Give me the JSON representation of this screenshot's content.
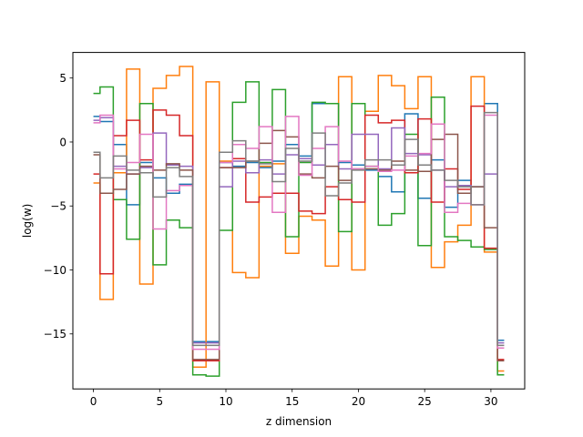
{
  "chart_data": {
    "type": "line",
    "step": "mid",
    "title": "",
    "xlabel": "z dimension",
    "ylabel": "log(w)",
    "xlim": [
      -1.55,
      32.55
    ],
    "ylim": [
      -19.3,
      7.0
    ],
    "xticks": [
      0,
      5,
      10,
      15,
      20,
      25,
      30
    ],
    "yticks": [
      -15,
      -10,
      -5,
      0,
      5
    ],
    "xtick_labels": [
      "0",
      "5",
      "10",
      "15",
      "20",
      "25",
      "30"
    ],
    "ytick_labels": [
      "−15",
      "−10",
      "−5",
      "0",
      "5"
    ],
    "grid": false,
    "legend": false,
    "x": [
      0,
      1,
      2,
      3,
      4,
      5,
      6,
      7,
      8,
      9,
      10,
      11,
      12,
      13,
      14,
      15,
      16,
      17,
      18,
      19,
      20,
      21,
      22,
      23,
      24,
      25,
      26,
      27,
      28,
      29,
      30,
      31
    ],
    "series": [
      {
        "color": "#1f77b4",
        "values": [
          2.0,
          1.6,
          -0.2,
          -4.9,
          -1.6,
          -2.8,
          -4.0,
          -3.3,
          -15.6,
          -15.6,
          -1.6,
          -1.9,
          -1.6,
          -2.0,
          -1.5,
          -0.2,
          -1.1,
          3.0,
          3.0,
          -1.6,
          -1.8,
          -2.2,
          -2.7,
          -3.9,
          2.2,
          -4.4,
          -1.4,
          -5.1,
          -3.0,
          -3.5,
          3.0,
          -15.5
        ]
      },
      {
        "color": "#ff7f0e",
        "values": [
          -3.2,
          -12.3,
          -2.4,
          5.7,
          -11.1,
          4.2,
          5.2,
          5.9,
          -17.6,
          4.7,
          -1.5,
          -10.2,
          -10.6,
          -1.9,
          -1.7,
          -8.7,
          -5.8,
          -6.1,
          -9.7,
          5.1,
          -10.0,
          2.4,
          5.2,
          4.4,
          2.6,
          5.1,
          -9.8,
          -7.8,
          -6.5,
          5.1,
          -8.6,
          -17.9
        ]
      },
      {
        "color": "#2ca02c",
        "values": [
          3.8,
          4.3,
          -4.5,
          -7.6,
          3.0,
          -9.6,
          -6.1,
          -6.7,
          -18.2,
          -18.3,
          -6.9,
          3.1,
          4.7,
          -1.6,
          4.1,
          -7.4,
          -1.6,
          3.1,
          3.0,
          -7.0,
          3.0,
          -1.9,
          -6.5,
          -5.6,
          0.6,
          -8.1,
          3.5,
          -7.4,
          -7.7,
          -8.2,
          -8.4,
          -18.2
        ]
      },
      {
        "color": "#d62728",
        "values": [
          -2.5,
          -10.3,
          0.5,
          1.7,
          -1.4,
          2.5,
          2.1,
          0.5,
          -17.1,
          -17.1,
          -2.0,
          -1.3,
          -4.7,
          -4.3,
          -4.0,
          -4.0,
          -5.4,
          -5.6,
          -3.5,
          -4.5,
          -4.7,
          2.1,
          1.5,
          1.7,
          -2.4,
          1.8,
          -4.7,
          -2.1,
          -3.7,
          2.8,
          -8.3,
          -17.0
        ]
      },
      {
        "color": "#9467bd",
        "values": [
          1.7,
          1.9,
          -1.9,
          -2.5,
          -2.0,
          0.7,
          -1.8,
          -1.9,
          -15.7,
          -15.7,
          -3.5,
          -1.5,
          -2.4,
          -1.4,
          -2.5,
          -1.0,
          -1.3,
          -1.8,
          -0.2,
          -2.1,
          0.6,
          0.6,
          -2.1,
          1.1,
          -0.9,
          -1.0,
          -2.2,
          -3.5,
          -3.4,
          -4.9,
          -2.5,
          -15.7
        ]
      },
      {
        "color": "#8c564b",
        "values": [
          -1.0,
          -4.0,
          -3.7,
          -2.5,
          -1.9,
          -2.2,
          -1.7,
          -2.2,
          -17.0,
          -17.0,
          -2.0,
          -2.0,
          -1.5,
          -0.1,
          0.9,
          0.4,
          -2.5,
          -2.8,
          -1.9,
          -3.0,
          -2.1,
          -2.1,
          -2.2,
          -1.5,
          -2.2,
          -2.3,
          0.2,
          0.6,
          -4.0,
          -3.5,
          -6.7,
          -17.1
        ]
      },
      {
        "color": "#e377c2",
        "values": [
          1.5,
          2.1,
          -2.1,
          -1.6,
          0.6,
          -6.8,
          -3.8,
          -3.4,
          -16.2,
          -16.2,
          -1.6,
          -0.2,
          -0.5,
          1.2,
          -5.5,
          2.0,
          -2.6,
          -0.5,
          1.2,
          -1.5,
          -2.1,
          -1.9,
          -2.3,
          -2.2,
          -1.1,
          -0.9,
          1.4,
          -5.5,
          -4.8,
          -4.9,
          2.1,
          -16.1
        ]
      },
      {
        "color": "#7f7f7f",
        "values": [
          -0.8,
          -2.8,
          -1.1,
          -2.2,
          -2.4,
          -4.3,
          -2.0,
          -2.7,
          -15.9,
          -15.9,
          -0.8,
          0.1,
          -1.5,
          -1.7,
          -3.1,
          -0.5,
          -1.5,
          0.7,
          -4.2,
          -3.2,
          -2.2,
          -1.4,
          -1.4,
          -1.8,
          0.2,
          -1.8,
          -2.2,
          -3.0,
          -3.5,
          -4.9,
          2.3,
          -15.9
        ]
      }
    ]
  }
}
